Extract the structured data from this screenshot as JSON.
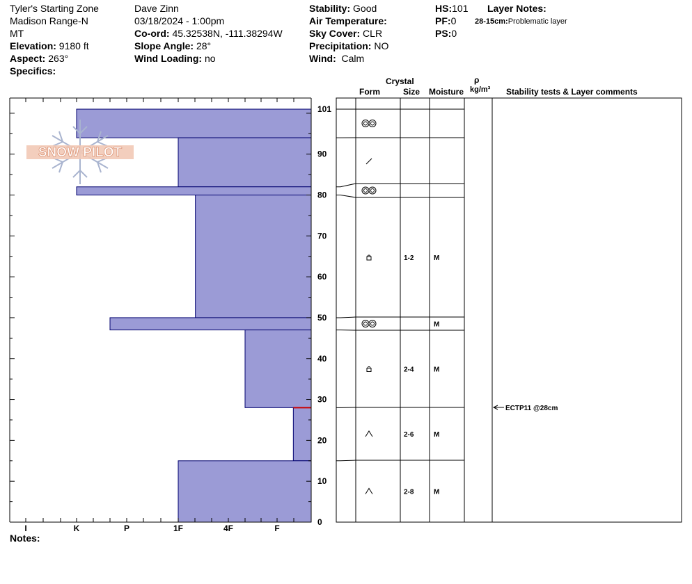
{
  "header": {
    "location": "Tyler's Starting Zone",
    "range": "Madison Range-N",
    "state": "MT",
    "elevation_label": "Elevation:",
    "elevation": "9180 ft",
    "aspect_label": "Aspect:",
    "aspect": "263°",
    "specifics_label": "Specifics:",
    "observer": "Dave Zinn",
    "datetime": "03/18/2024 - 1:00pm",
    "coord_label": "Co-ord:",
    "coord": "45.32538N, -111.38294W",
    "slope_label": "Slope Angle:",
    "slope": "28°",
    "wind_loading_label": "Wind Loading:",
    "wind_loading": "no",
    "stability_label": "Stability:",
    "stability": "Good",
    "air_temp_label": "Air Temperature:",
    "sky_label": "Sky Cover:",
    "sky": "CLR",
    "precip_label": "Precipitation:",
    "precip": "NO",
    "wind_label": "Wind:",
    "wind": "Calm",
    "hs_label": "HS:",
    "hs": "101",
    "pf_label": "PF:",
    "pf": "0",
    "ps_label": "PS:",
    "ps": "0",
    "layer_notes_label": "Layer Notes:",
    "layer_note_range": "28-15cm:",
    "layer_note_text": "Problematic layer"
  },
  "columns": {
    "crystal": "Crystal",
    "form": "Form",
    "size": "Size",
    "moisture": "Moisture",
    "rho": "ρ",
    "density_unit": "kg/m³",
    "stability": "Stability tests & Layer comments"
  },
  "logo_text": "SNOW PILOT",
  "notes_label": "Notes:",
  "colors": {
    "hardness_fill": "#9b9bd6",
    "hardness_stroke": "#00006e",
    "weak_layer": "#cc0000"
  },
  "chart_data": {
    "type": "bar",
    "hardness_ticks": [
      "I",
      "K",
      "P",
      "1F",
      "4F",
      "F"
    ],
    "depth_ticks": [
      0,
      10,
      20,
      30,
      40,
      50,
      60,
      70,
      80,
      90,
      101
    ],
    "ylim": [
      0,
      101
    ],
    "layers": [
      {
        "top": 101,
        "bottom": 94,
        "hardness": "K",
        "form": "rounding",
        "size": "",
        "moisture": ""
      },
      {
        "top": 94,
        "bottom": 82,
        "hardness": "1F",
        "form": "slash",
        "size": "",
        "moisture": ""
      },
      {
        "top": 82,
        "bottom": 80,
        "hardness": "K",
        "form": "rounding",
        "size": "",
        "moisture": ""
      },
      {
        "top": 80,
        "bottom": 50,
        "hardness": "1F+",
        "form": "faceted-rounded",
        "size": "1-2",
        "moisture": "M"
      },
      {
        "top": 50,
        "bottom": 47,
        "hardness": "P-",
        "form": "rounding",
        "size": "",
        "moisture": "M"
      },
      {
        "top": 47,
        "bottom": 28,
        "hardness": "4F+",
        "form": "faceted-rounded",
        "size": "2-4",
        "moisture": "M"
      },
      {
        "top": 28,
        "bottom": 15,
        "hardness": "F+",
        "form": "depth-hoar",
        "size": "2-6",
        "moisture": "M"
      },
      {
        "top": 15,
        "bottom": 0,
        "hardness": "1F",
        "form": "depth-hoar",
        "size": "2-8",
        "moisture": "M"
      }
    ],
    "weak_layer_depth": 28,
    "stability_tests": [
      {
        "depth": 28,
        "text": "ECTP11 @28cm"
      }
    ]
  }
}
